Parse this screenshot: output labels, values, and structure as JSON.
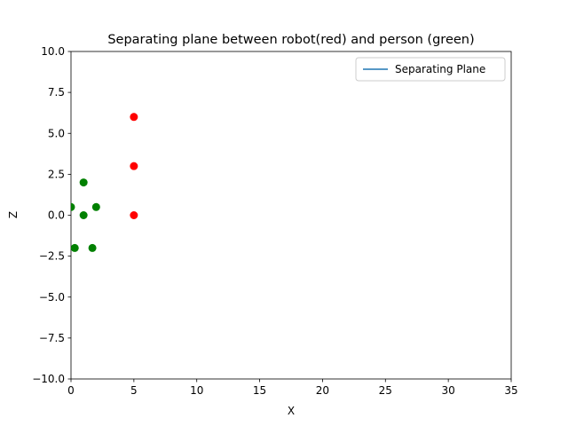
{
  "chart_data": {
    "type": "scatter",
    "title": "Separating plane between robot(red) and person (green)",
    "xlabel": "X",
    "ylabel": "Z",
    "xlim": [
      0,
      35
    ],
    "ylim": [
      -10,
      10
    ],
    "x_ticks": [
      0,
      5,
      10,
      15,
      20,
      25,
      30,
      35
    ],
    "x_tick_labels": [
      "0",
      "5",
      "10",
      "15",
      "20",
      "25",
      "30",
      "35"
    ],
    "y_ticks": [
      -10,
      -7.5,
      -5,
      -2.5,
      0,
      2.5,
      5,
      7.5,
      10
    ],
    "y_tick_labels": [
      "−10.0",
      "−7.5",
      "−5.0",
      "−2.5",
      "0.0",
      "2.5",
      "5.0",
      "7.5",
      "10.0"
    ],
    "grid": false,
    "legend_position": "top-right",
    "series": [
      {
        "name": "Separating Plane",
        "kind": "line",
        "color": "#1f77b4",
        "x": [],
        "y": []
      },
      {
        "kind": "scatter",
        "color": "#ff0000",
        "x": [
          5,
          5,
          5
        ],
        "y": [
          6,
          3,
          0
        ]
      },
      {
        "kind": "scatter",
        "color": "#008000",
        "x": [
          0,
          1,
          1,
          2,
          0.3,
          1.7
        ],
        "y": [
          0.5,
          2,
          0,
          0.5,
          -2,
          -2
        ]
      }
    ]
  }
}
